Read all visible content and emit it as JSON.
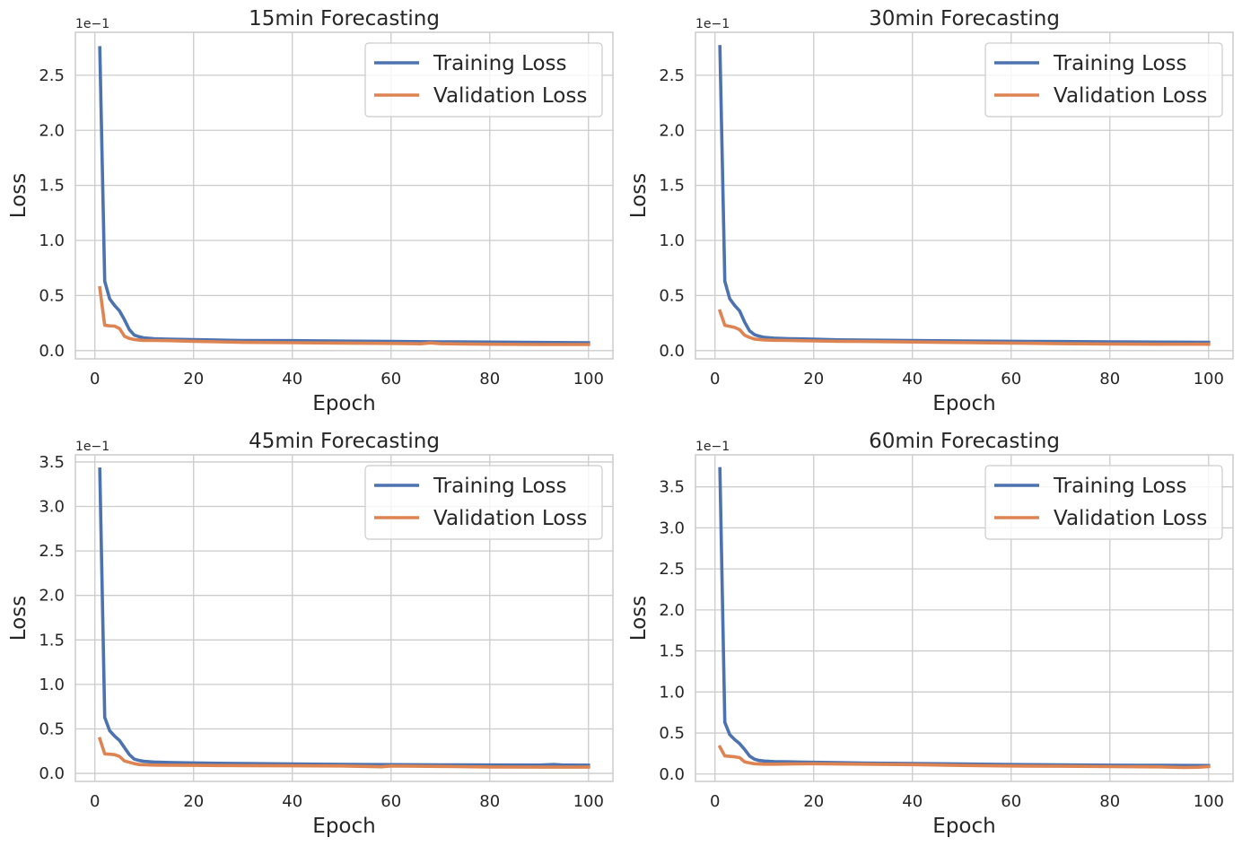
{
  "chart_data": [
    {
      "type": "line",
      "title": "15min Forecasting",
      "xlabel": "Epoch",
      "ylabel": "Loss",
      "y_scale_label": "1e−1",
      "xlim": [
        -3.95,
        104.95
      ],
      "ylim": [
        -0.075,
        2.89
      ],
      "xticks": [
        0,
        20,
        40,
        60,
        80,
        100
      ],
      "yticks": [
        0.0,
        0.5,
        1.0,
        1.5,
        2.0,
        2.5
      ],
      "grid": true,
      "legend_position": "top-right",
      "series": [
        {
          "name": "Training Loss",
          "color": "#4c72b0",
          "x": [
            1,
            2,
            3,
            4,
            5,
            6,
            7,
            8,
            9,
            10,
            12,
            15,
            20,
            25,
            30,
            40,
            50,
            60,
            70,
            80,
            90,
            100
          ],
          "values": [
            2.75,
            0.63,
            0.47,
            0.41,
            0.36,
            0.28,
            0.19,
            0.14,
            0.125,
            0.115,
            0.108,
            0.104,
            0.099,
            0.095,
            0.092,
            0.09,
            0.086,
            0.083,
            0.08,
            0.077,
            0.074,
            0.072
          ]
        },
        {
          "name": "Validation Loss",
          "color": "#dd8452",
          "x": [
            1,
            2,
            3,
            4,
            5,
            6,
            7,
            8,
            9,
            10,
            12,
            15,
            20,
            25,
            30,
            40,
            50,
            60,
            66,
            68,
            70,
            80,
            90,
            100
          ],
          "values": [
            0.57,
            0.23,
            0.225,
            0.222,
            0.2,
            0.13,
            0.11,
            0.1,
            0.095,
            0.093,
            0.092,
            0.09,
            0.085,
            0.08,
            0.075,
            0.072,
            0.068,
            0.065,
            0.062,
            0.07,
            0.063,
            0.058,
            0.055,
            0.055
          ]
        }
      ]
    },
    {
      "type": "line",
      "title": "30min Forecasting",
      "xlabel": "Epoch",
      "ylabel": "Loss",
      "y_scale_label": "1e−1",
      "xlim": [
        -3.95,
        104.95
      ],
      "ylim": [
        -0.075,
        2.89
      ],
      "xticks": [
        0,
        20,
        40,
        60,
        80,
        100
      ],
      "yticks": [
        0.0,
        0.5,
        1.0,
        1.5,
        2.0,
        2.5
      ],
      "grid": true,
      "legend_position": "top-right",
      "series": [
        {
          "name": "Training Loss",
          "color": "#4c72b0",
          "x": [
            1,
            2,
            3,
            4,
            5,
            6,
            7,
            8,
            9,
            10,
            12,
            15,
            20,
            25,
            30,
            40,
            50,
            60,
            70,
            80,
            90,
            100
          ],
          "values": [
            2.76,
            0.63,
            0.47,
            0.41,
            0.36,
            0.26,
            0.18,
            0.145,
            0.13,
            0.12,
            0.113,
            0.108,
            0.103,
            0.098,
            0.096,
            0.092,
            0.088,
            0.085,
            0.082,
            0.079,
            0.077,
            0.075
          ]
        },
        {
          "name": "Validation Loss",
          "color": "#dd8452",
          "x": [
            1,
            2,
            3,
            4,
            5,
            6,
            7,
            8,
            9,
            10,
            12,
            15,
            20,
            25,
            30,
            40,
            50,
            60,
            70,
            80,
            90,
            100
          ],
          "values": [
            0.36,
            0.23,
            0.22,
            0.21,
            0.19,
            0.14,
            0.12,
            0.105,
            0.1,
            0.097,
            0.094,
            0.092,
            0.088,
            0.085,
            0.083,
            0.078,
            0.073,
            0.068,
            0.063,
            0.06,
            0.058,
            0.058
          ]
        }
      ]
    },
    {
      "type": "line",
      "title": "45min Forecasting",
      "xlabel": "Epoch",
      "ylabel": "Loss",
      "y_scale_label": "1e−1",
      "xlim": [
        -3.95,
        104.95
      ],
      "ylim": [
        -0.09,
        3.58
      ],
      "xticks": [
        0,
        20,
        40,
        60,
        80,
        100
      ],
      "yticks": [
        0.0,
        0.5,
        1.0,
        1.5,
        2.0,
        2.5,
        3.0,
        3.5
      ],
      "grid": true,
      "legend_position": "top-right",
      "series": [
        {
          "name": "Training Loss",
          "color": "#4c72b0",
          "x": [
            1,
            2,
            3,
            4,
            5,
            6,
            7,
            8,
            9,
            10,
            12,
            15,
            20,
            25,
            30,
            40,
            50,
            60,
            70,
            80,
            90,
            93,
            95,
            100
          ],
          "values": [
            3.42,
            0.63,
            0.48,
            0.42,
            0.37,
            0.29,
            0.21,
            0.16,
            0.145,
            0.135,
            0.128,
            0.123,
            0.118,
            0.114,
            0.111,
            0.106,
            0.102,
            0.099,
            0.097,
            0.095,
            0.093,
            0.1,
            0.094,
            0.092
          ]
        },
        {
          "name": "Validation Loss",
          "color": "#dd8452",
          "x": [
            1,
            2,
            3,
            4,
            5,
            6,
            7,
            8,
            9,
            10,
            12,
            15,
            20,
            25,
            30,
            40,
            50,
            55,
            58,
            60,
            70,
            80,
            90,
            100
          ],
          "values": [
            0.39,
            0.22,
            0.215,
            0.21,
            0.19,
            0.14,
            0.125,
            0.11,
            0.1,
            0.097,
            0.094,
            0.092,
            0.09,
            0.088,
            0.087,
            0.085,
            0.083,
            0.078,
            0.074,
            0.083,
            0.078,
            0.072,
            0.07,
            0.07
          ]
        }
      ]
    },
    {
      "type": "line",
      "title": "60min Forecasting",
      "xlabel": "Epoch",
      "ylabel": "Loss",
      "y_scale_label": "1e−1",
      "xlim": [
        -3.95,
        104.95
      ],
      "ylim": [
        -0.09,
        3.89
      ],
      "xticks": [
        0,
        20,
        40,
        60,
        80,
        100
      ],
      "yticks": [
        0.0,
        0.5,
        1.0,
        1.5,
        2.0,
        2.5,
        3.0,
        3.5
      ],
      "grid": true,
      "legend_position": "top-right",
      "series": [
        {
          "name": "Training Loss",
          "color": "#4c72b0",
          "x": [
            1,
            2,
            3,
            4,
            5,
            6,
            7,
            8,
            9,
            10,
            12,
            15,
            20,
            25,
            30,
            40,
            50,
            60,
            70,
            80,
            90,
            100
          ],
          "values": [
            3.72,
            0.63,
            0.48,
            0.42,
            0.37,
            0.3,
            0.22,
            0.18,
            0.165,
            0.158,
            0.152,
            0.148,
            0.143,
            0.138,
            0.134,
            0.128,
            0.122,
            0.116,
            0.112,
            0.108,
            0.106,
            0.104
          ]
        },
        {
          "name": "Validation Loss",
          "color": "#dd8452",
          "x": [
            1,
            2,
            3,
            4,
            5,
            6,
            7,
            8,
            9,
            10,
            12,
            15,
            20,
            25,
            30,
            40,
            50,
            60,
            70,
            80,
            90,
            95,
            98,
            100
          ],
          "values": [
            0.33,
            0.22,
            0.215,
            0.21,
            0.2,
            0.15,
            0.135,
            0.125,
            0.122,
            0.12,
            0.12,
            0.122,
            0.125,
            0.122,
            0.12,
            0.115,
            0.105,
            0.098,
            0.095,
            0.09,
            0.087,
            0.08,
            0.083,
            0.09
          ]
        }
      ]
    }
  ]
}
